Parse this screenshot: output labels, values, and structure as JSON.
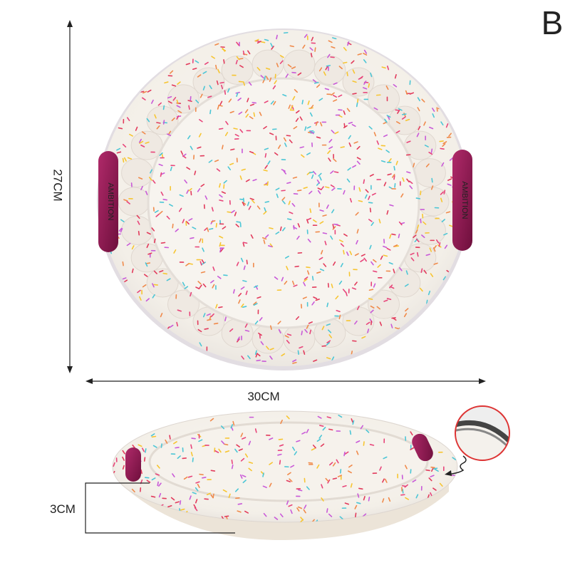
{
  "corner_label": "B",
  "dimensions": {
    "height": "27CM",
    "width": "30CM",
    "depth": "3CM"
  },
  "handle_text": "AMBITION"
}
